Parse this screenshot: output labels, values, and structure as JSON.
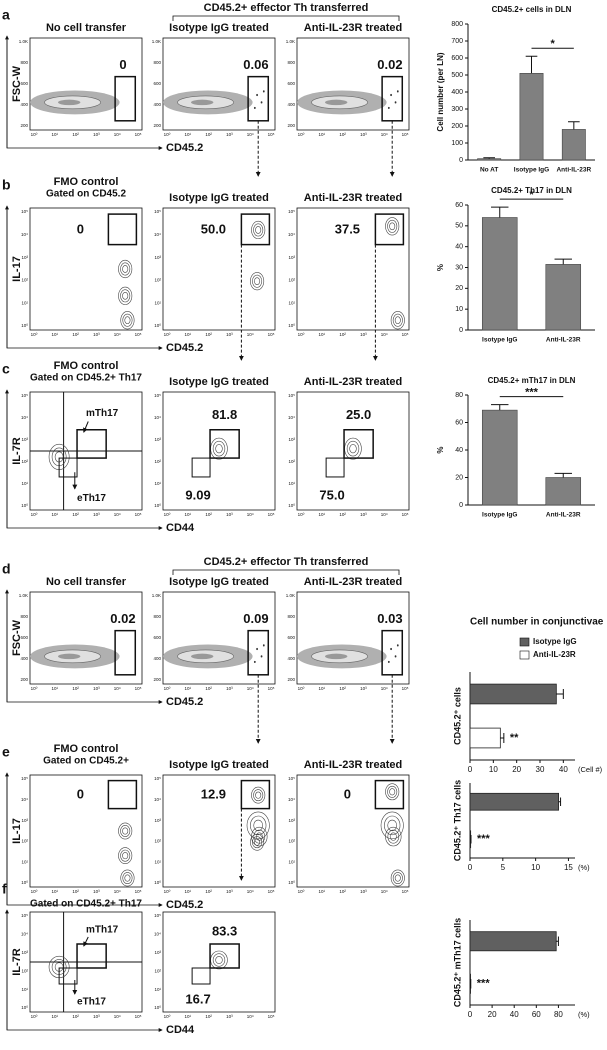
{
  "figure": {
    "rows": [
      {
        "letter": "a",
        "group_label": "CD45.2+ effector Th transferred",
        "y_label": "FSC-W",
        "x_label": "CD45.2",
        "y_ticks": [
          "1.0K",
          "800",
          "600",
          "400",
          "200"
        ],
        "x_ticks": [
          "10⁰",
          "10¹",
          "10²",
          "10³",
          "10⁴",
          "10⁵"
        ],
        "plots": [
          {
            "title": "No cell transfer",
            "gates": [
              "0"
            ]
          },
          {
            "title": "Isotype IgG treated",
            "gates": [
              "0.06"
            ]
          },
          {
            "title": "Anti-IL-23R treated",
            "gates": [
              "0.02"
            ]
          }
        ]
      },
      {
        "letter": "b",
        "y_label": "IL-17",
        "x_label": "CD45.2",
        "y_ticks": [
          "10⁵",
          "10⁴",
          "10³",
          "10²",
          "10¹",
          "10⁰"
        ],
        "x_ticks": [
          "10⁰",
          "10¹",
          "10²",
          "10³",
          "10⁴",
          "10⁵"
        ],
        "plots": [
          {
            "title": "FMO control",
            "subtitle": "Gated on CD45.2",
            "gates": [
              "0"
            ]
          },
          {
            "title": "Isotype IgG treated",
            "gates": [
              "50.0"
            ]
          },
          {
            "title": "Anti-IL-23R treated",
            "gates": [
              "37.5"
            ]
          }
        ]
      },
      {
        "letter": "c",
        "y_label": "IL-7R",
        "x_label": "CD44",
        "y_ticks": [
          "10⁵",
          "10⁴",
          "10³",
          "10²",
          "10¹",
          "10⁰"
        ],
        "x_ticks": [
          "10⁰",
          "10¹",
          "10²",
          "10³",
          "10⁴",
          "10⁵"
        ],
        "plots": [
          {
            "title": "FMO control",
            "subtitle": "Gated on CD45.2+ Th17",
            "labels": [
              "mTh17",
              "eTh17"
            ]
          },
          {
            "title": "Isotype IgG treated",
            "gates": [
              "81.8",
              "9.09"
            ]
          },
          {
            "title": "Anti-IL-23R treated",
            "gates": [
              "25.0",
              "75.0"
            ]
          }
        ]
      },
      {
        "letter": "d",
        "group_label": "CD45.2+ effector Th transferred",
        "y_label": "FSC-W",
        "x_label": "CD45.2",
        "y_ticks": [
          "1.0K",
          "800",
          "600",
          "400",
          "200"
        ],
        "x_ticks": [
          "10⁰",
          "10¹",
          "10²",
          "10³",
          "10⁴",
          "10⁵"
        ],
        "plots": [
          {
            "title": "No cell transfer",
            "gates": [
              "0.02"
            ]
          },
          {
            "title": "Isotype IgG treated",
            "gates": [
              "0.09"
            ]
          },
          {
            "title": "Anti-IL-23R treated",
            "gates": [
              "0.03"
            ]
          }
        ]
      },
      {
        "letter": "e",
        "y_label": "IL-17",
        "x_label": "CD45.2",
        "y_ticks": [
          "10⁵",
          "10⁴",
          "10³",
          "10²",
          "10¹",
          "10⁰"
        ],
        "x_ticks": [
          "10⁰",
          "10¹",
          "10²",
          "10³",
          "10⁴",
          "10⁵"
        ],
        "plots": [
          {
            "title": "FMO control",
            "subtitle": "Gated on CD45.2+",
            "gates": [
              "0"
            ]
          },
          {
            "title": "Isotype IgG treated",
            "gates": [
              "12.9"
            ]
          },
          {
            "title": "Anti-IL-23R treated",
            "gates": [
              "0"
            ]
          }
        ]
      },
      {
        "letter": "f",
        "y_label": "IL-7R",
        "x_label": "CD44",
        "y_ticks": [
          "10⁵",
          "10⁴",
          "10³",
          "10²",
          "10¹",
          "10⁰"
        ],
        "x_ticks": [
          "10⁰",
          "10¹",
          "10²",
          "10³",
          "10⁴",
          "10⁵"
        ],
        "plots": [
          {
            "subtitle": "Gated on CD45.2+ Th17",
            "labels": [
              "mTh17",
              "eTh17"
            ]
          },
          {
            "gates": [
              "83.3",
              "16.7"
            ]
          }
        ]
      }
    ]
  },
  "chart_data": [
    {
      "type": "bar",
      "title": "CD45.2+ cells in DLN",
      "y_label": "Cell number (per LN)",
      "categories": [
        "No AT",
        "Isotype IgG",
        "Anti-IL-23R"
      ],
      "values": [
        8,
        510,
        180
      ],
      "errors": [
        5,
        100,
        45
      ],
      "color": "#808080",
      "ylim": [
        0,
        800
      ],
      "yticks": [
        0,
        100,
        200,
        300,
        400,
        500,
        600,
        700,
        800
      ],
      "significance": "*"
    },
    {
      "type": "bar",
      "title": "CD45.2+ Th17 in DLN",
      "y_label": "%",
      "categories": [
        "Isotype IgG",
        "Anti-IL-23R"
      ],
      "values": [
        54,
        31.5
      ],
      "errors": [
        5,
        2.5
      ],
      "color": "#808080",
      "ylim": [
        0,
        60
      ],
      "yticks": [
        0,
        10,
        20,
        30,
        40,
        50,
        60
      ],
      "significance": "*"
    },
    {
      "type": "bar",
      "title": "CD45.2+ mTh17 in DLN",
      "y_label": "%",
      "categories": [
        "Isotype IgG",
        "Anti-IL-23R"
      ],
      "values": [
        69,
        20
      ],
      "errors": [
        4,
        3
      ],
      "color": "#808080",
      "ylim": [
        0,
        80
      ],
      "yticks": [
        0,
        20,
        40,
        60,
        80
      ],
      "significance": "***"
    },
    {
      "type": "hbar",
      "title": "Cell number in conjunctivae",
      "y_label": "CD45.2⁺ cells",
      "series": [
        {
          "name": "Isotype IgG",
          "color": "#606060",
          "values": [
            37
          ],
          "errors": [
            3
          ]
        },
        {
          "name": "Anti-IL-23R",
          "color": "#ffffff",
          "values": [
            13
          ],
          "errors": [
            1.5
          ]
        }
      ],
      "xlim": [
        0,
        45
      ],
      "xticks": [
        0,
        10,
        20,
        30,
        40
      ],
      "x_unit": "(Cell #)",
      "significance": "**",
      "legend": "top-right"
    },
    {
      "type": "hbar",
      "y_label": "CD45.2⁺ Th17 cells",
      "series": [
        {
          "name": "Isotype IgG",
          "color": "#606060",
          "values": [
            13.5
          ],
          "errors": [
            0.3
          ]
        },
        {
          "name": "Anti-IL-23R",
          "color": "#ffffff",
          "values": [
            0.1
          ],
          "errors": [
            0.05
          ]
        }
      ],
      "xlim": [
        0,
        16
      ],
      "xticks": [
        0,
        5,
        10,
        15
      ],
      "x_unit": "(%)",
      "significance": "***"
    },
    {
      "type": "hbar",
      "y_label": "CD45.2⁺ mTh17 cells",
      "series": [
        {
          "name": "Isotype IgG",
          "color": "#606060",
          "values": [
            78
          ],
          "errors": [
            2
          ]
        },
        {
          "name": "Anti-IL-23R",
          "color": "#ffffff",
          "values": [
            0.5
          ],
          "errors": [
            0.2
          ]
        }
      ],
      "xlim": [
        0,
        95
      ],
      "xticks": [
        0,
        20,
        40,
        60,
        80
      ],
      "x_unit": "(%)",
      "significance": "***"
    }
  ]
}
